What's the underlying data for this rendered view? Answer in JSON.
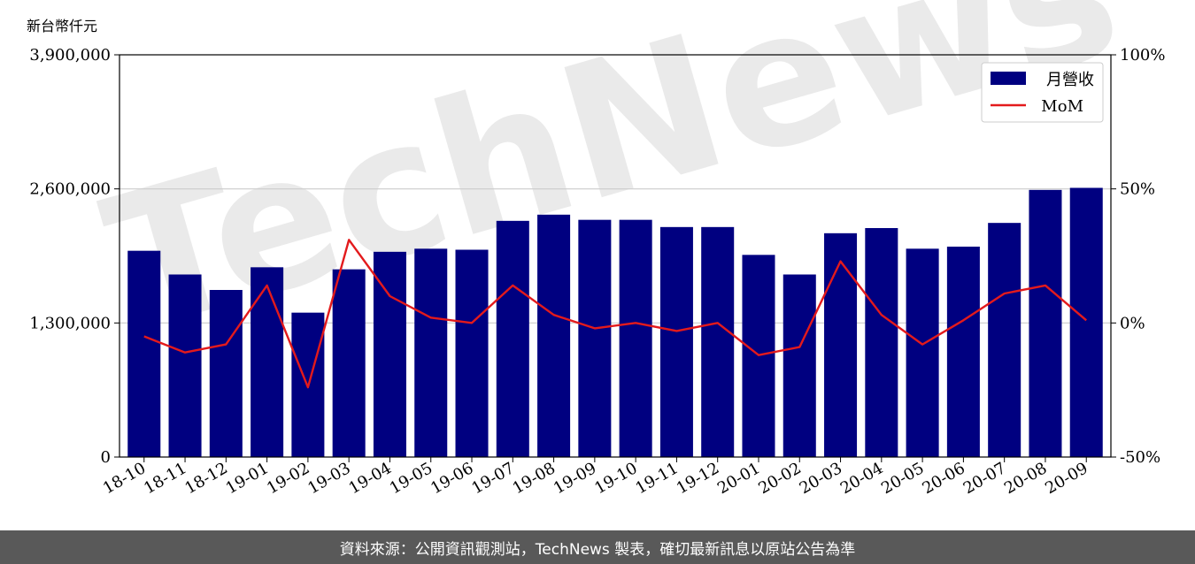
{
  "unit_label": "新台幣仟元",
  "footer_text": "資料來源：公開資訊觀測站，TechNews 製表，確切最新訊息以原站公告為準",
  "watermark_text": "TechNews",
  "colors": {
    "bar": "#000080",
    "line": "#e31a1c",
    "grid": "#cccccc",
    "footer_bg": "#595959"
  },
  "chart_data": {
    "type": "bar",
    "categories": [
      "18-10",
      "18-11",
      "18-12",
      "19-01",
      "19-02",
      "19-03",
      "19-04",
      "19-05",
      "19-06",
      "19-07",
      "19-08",
      "19-09",
      "19-10",
      "19-11",
      "19-12",
      "20-01",
      "20-02",
      "20-03",
      "20-04",
      "20-05",
      "20-06",
      "20-07",
      "20-08",
      "20-09"
    ],
    "series": [
      {
        "name": "月營收",
        "type": "bar",
        "axis": "left",
        "values": [
          2000000,
          1770000,
          1620000,
          1840000,
          1400000,
          1820000,
          1990000,
          2020000,
          2010000,
          2290000,
          2350000,
          2300000,
          2300000,
          2230000,
          2230000,
          1960000,
          1770000,
          2170000,
          2220000,
          2020000,
          2040000,
          2270000,
          2590000,
          2610000
        ]
      },
      {
        "name": "MoM",
        "type": "line",
        "axis": "right",
        "unit": "%",
        "values": [
          -5,
          -11,
          -8,
          14,
          -24,
          31,
          10,
          2,
          0,
          14,
          3,
          -2,
          0,
          -3,
          0,
          -12,
          -9,
          23,
          3,
          -8,
          1,
          11,
          14,
          1
        ]
      }
    ],
    "y_left": {
      "ylim": [
        0,
        3900000
      ],
      "ticks": [
        0,
        1300000,
        2600000,
        3900000
      ],
      "tick_labels": [
        "0",
        "1,300,000",
        "2,600,000",
        "3,900,000"
      ]
    },
    "y_right": {
      "ylim": [
        -50,
        100
      ],
      "ticks": [
        -50,
        0,
        50,
        100
      ],
      "tick_labels": [
        "-50%",
        "0%",
        "50%",
        "100%"
      ]
    },
    "grid": "horizontal",
    "legend": "top-right"
  }
}
